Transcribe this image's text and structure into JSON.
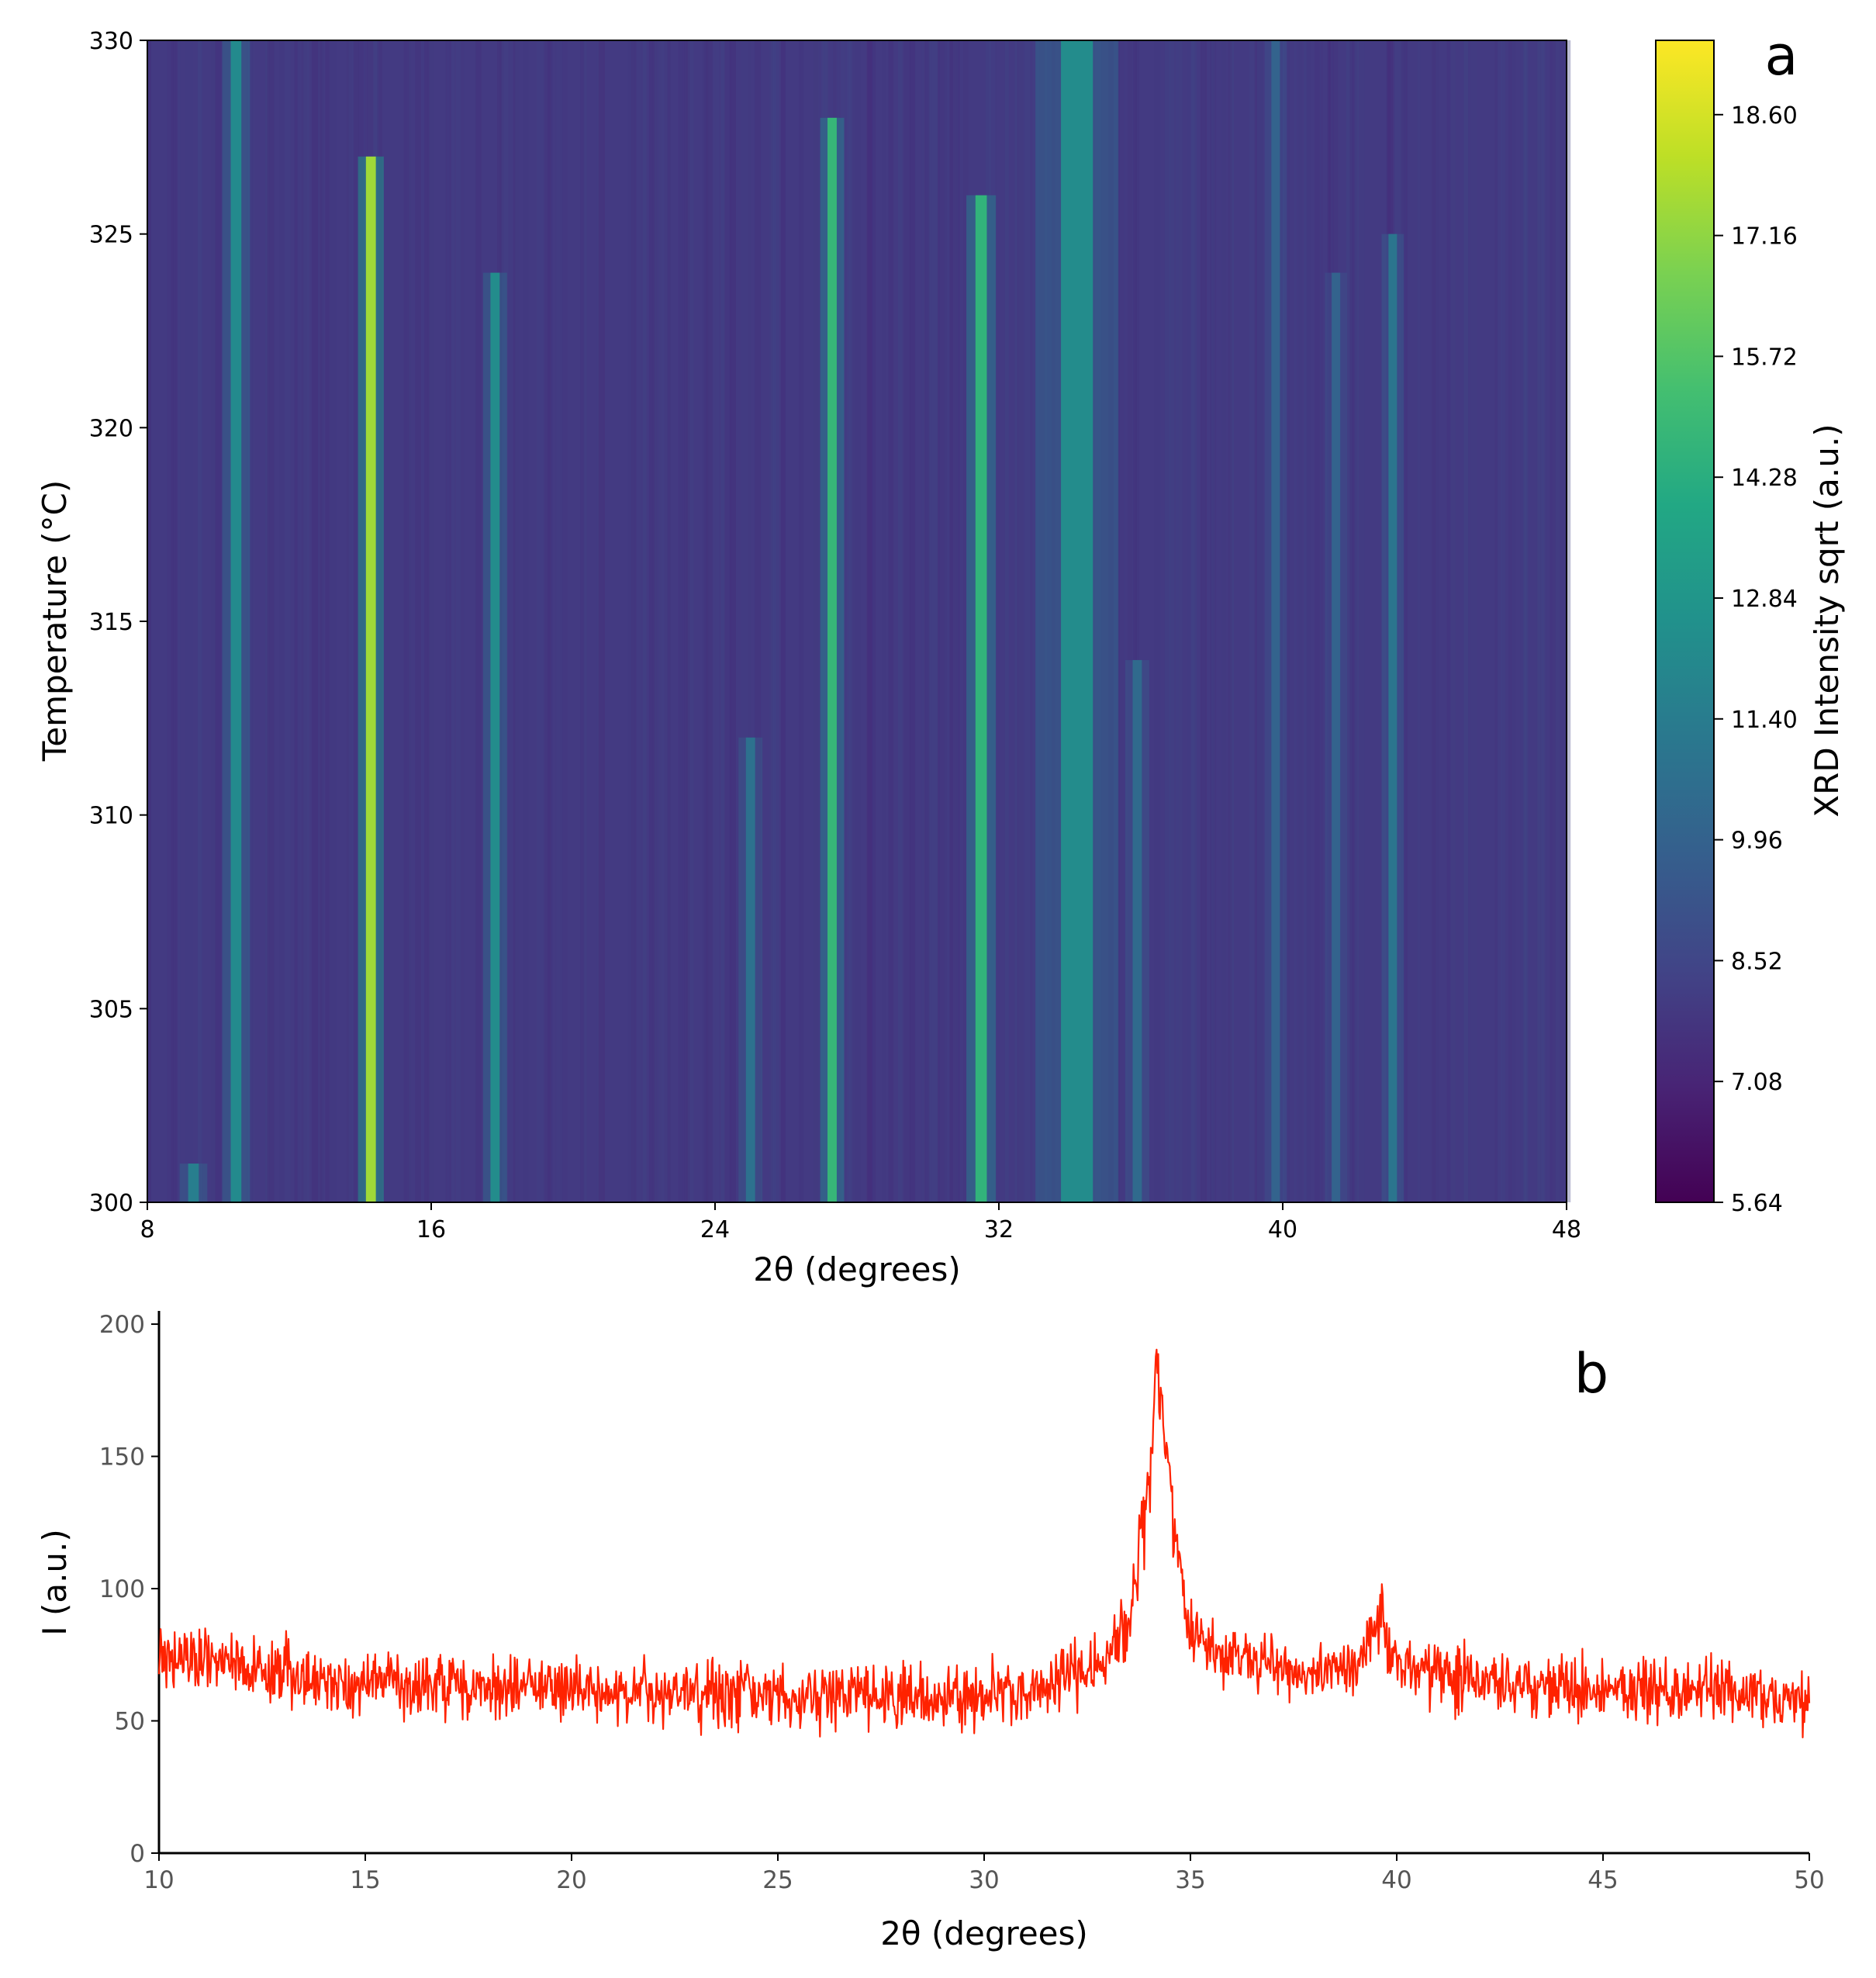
{
  "panel_a": {
    "letter": "a",
    "xlabel": "2θ (degrees)",
    "ylabel": "Temperature (°C)",
    "colorbar_label": "XRD Intensity sqrt (a.u.)",
    "x_ticks": [
      "8",
      "16",
      "24",
      "32",
      "40",
      "48"
    ],
    "y_ticks": [
      "300",
      "305",
      "310",
      "315",
      "320",
      "325",
      "330"
    ],
    "colorbar_ticks": [
      "5.64",
      "7.08",
      "8.52",
      "9.96",
      "11.40",
      "12.84",
      "14.28",
      "15.72",
      "17.16",
      "18.60"
    ]
  },
  "panel_b": {
    "letter": "b",
    "xlabel": "2θ (degrees)",
    "ylabel": "I (a.u.)",
    "x_ticks": [
      "10",
      "15",
      "20",
      "25",
      "30",
      "35",
      "40",
      "45",
      "50"
    ],
    "y_ticks": [
      "0",
      "50",
      "100",
      "150",
      "200"
    ],
    "line_color": "#ff2200"
  },
  "chart_data": [
    {
      "type": "heatmap",
      "title": "",
      "xlabel": "2θ (degrees)",
      "ylabel": "Temperature (°C)",
      "xlim": [
        8,
        48
      ],
      "ylim": [
        300,
        330
      ],
      "colorbar": {
        "label": "XRD Intensity sqrt (a.u.)",
        "range": [
          5.64,
          19.5
        ],
        "colormap": "viridis"
      },
      "background_intensity": 8.0,
      "peaks": [
        {
          "two_theta": 9.3,
          "width": 0.15,
          "intensity": 11.5,
          "temperature_range": [
            300,
            301
          ]
        },
        {
          "two_theta": 10.5,
          "width": 0.15,
          "intensity": 12.2,
          "temperature_range": [
            300,
            330
          ]
        },
        {
          "two_theta": 14.3,
          "width": 0.14,
          "intensity": 17.5,
          "temperature_range": [
            300,
            327
          ]
        },
        {
          "two_theta": 17.8,
          "width": 0.13,
          "intensity": 12.3,
          "temperature_range": [
            300,
            324
          ]
        },
        {
          "two_theta": 25.0,
          "width": 0.13,
          "intensity": 10.8,
          "temperature_range": [
            300,
            312
          ]
        },
        {
          "two_theta": 27.3,
          "width": 0.13,
          "intensity": 14.8,
          "temperature_range": [
            300,
            328
          ]
        },
        {
          "two_theta": 31.5,
          "width": 0.16,
          "intensity": 14.6,
          "temperature_range": [
            300,
            326
          ]
        },
        {
          "two_theta": 34.2,
          "width": 0.45,
          "intensity": 12.3,
          "temperature_range": [
            300,
            330
          ]
        },
        {
          "two_theta": 35.9,
          "width": 0.13,
          "intensity": 10.4,
          "temperature_range": [
            300,
            314
          ]
        },
        {
          "two_theta": 39.8,
          "width": 0.12,
          "intensity": 10.0,
          "temperature_range": [
            300,
            330
          ]
        },
        {
          "two_theta": 41.5,
          "width": 0.12,
          "intensity": 10.0,
          "temperature_range": [
            300,
            324
          ]
        },
        {
          "two_theta": 43.1,
          "width": 0.12,
          "intensity": 11.0,
          "temperature_range": [
            300,
            325
          ]
        }
      ]
    },
    {
      "type": "line",
      "title": "",
      "xlabel": "2θ (degrees)",
      "ylabel": "I (a.u.)",
      "xlim": [
        10,
        50
      ],
      "ylim": [
        0,
        205
      ],
      "grid": false,
      "series": [
        {
          "color": "#ff2200",
          "x": [
            10,
            11,
            12,
            13,
            14,
            15,
            16,
            17,
            18,
            19,
            20,
            21,
            22,
            23,
            24,
            25,
            26,
            27,
            28,
            29,
            30,
            31,
            32,
            33,
            33.5,
            34.0,
            34.2,
            34.4,
            34.7,
            35.0,
            35.5,
            36,
            37,
            38,
            39,
            39.6,
            40,
            41,
            42,
            43,
            44,
            45,
            46,
            47,
            48,
            49,
            50
          ],
          "y": [
            76,
            74,
            72,
            68,
            66,
            65,
            65,
            64,
            63,
            63,
            62,
            62,
            61,
            61,
            60,
            60,
            60,
            60,
            60,
            60,
            60,
            62,
            67,
            75,
            88,
            140,
            185,
            160,
            110,
            85,
            75,
            72,
            70,
            68,
            70,
            88,
            72,
            68,
            66,
            65,
            63,
            62,
            61,
            60,
            60,
            59,
            58
          ]
        }
      ],
      "noise_amplitude": 8,
      "points": 2000
    }
  ]
}
